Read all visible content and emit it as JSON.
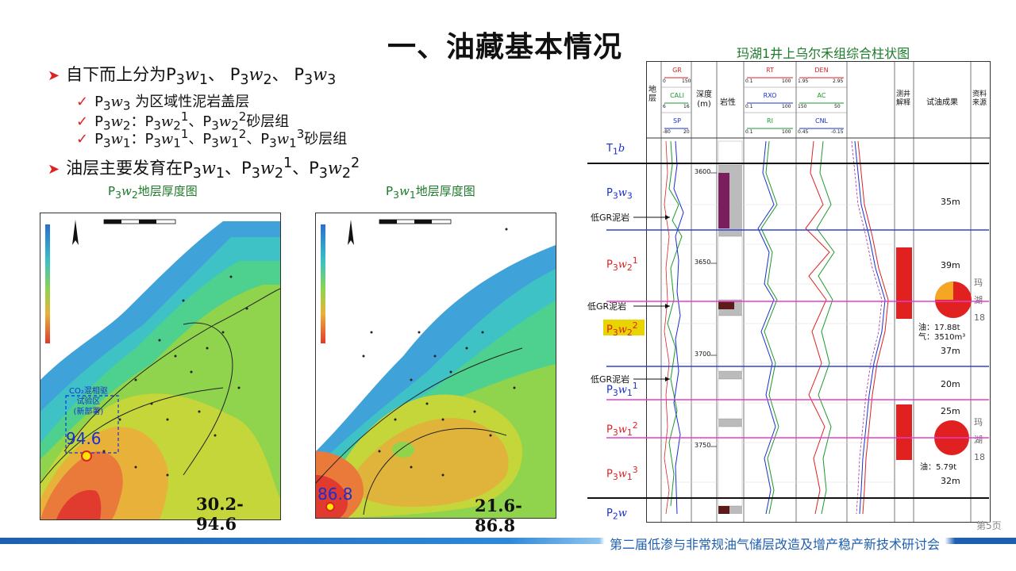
{
  "slide": {
    "title": "一、油藏基本情况",
    "page_number": "第5页",
    "footer": "第二届低渗与非常规油气储层改造及增产稳产新技术研讨会"
  },
  "bullets": {
    "b1": {
      "pre": "自下而上分为P",
      "s1": "3",
      "w1": "w",
      "n1": "1",
      "mid1": "、 P",
      "s2": "3",
      "w2": "w",
      "n2": "2",
      "mid2": "、 P",
      "s3": "3",
      "w3": "w",
      "n3": "3"
    },
    "sub1": "为区域性泥岩盖层",
    "sub2": "：",
    "sub2_tail": "砂层组",
    "sub3": "：",
    "sub3_tail": "砂层组",
    "b2_pre": "油层主要发育在"
  },
  "maps": {
    "left": {
      "label_pre": "P",
      "label_mid": "地层厚度图",
      "range": "30.2-94.6",
      "max_value": "94.6",
      "annotation": [
        "CO₂混相驱",
        "试验区",
        "(新部署)"
      ]
    },
    "right": {
      "label_pre": "P",
      "label_mid": "地层厚度图",
      "range": "21.6-86.8",
      "max_value": "86.8"
    }
  },
  "log_chart": {
    "title": "玛湖1井上乌尔禾组综合柱状图",
    "headers": {
      "strata": "地层",
      "depth": "深度(m)",
      "lith": "岩性",
      "interp": "测井解释",
      "test": "试油成果",
      "source": "资料来源"
    },
    "curves": {
      "gr": {
        "name": "GR",
        "min": "0",
        "max": "150"
      },
      "cali": {
        "name": "CALI",
        "min": "6",
        "max": "16"
      },
      "sp": {
        "name": "SP",
        "min": "-80",
        "max": "20"
      },
      "rt": {
        "name": "RT",
        "min": "0.1",
        "max": "100"
      },
      "rxo": {
        "name": "RXO",
        "min": "0.1",
        "max": "100"
      },
      "ri": {
        "name": "RI",
        "min": "0.1",
        "max": "100"
      },
      "den": {
        "name": "DEN",
        "min": "1.95",
        "max": "2.95"
      },
      "ac": {
        "name": "AC",
        "min": "150",
        "max": "50"
      },
      "cnl": {
        "name": "CNL",
        "min": "0.45",
        "max": "-0.15"
      }
    },
    "depth_ticks": [
      "3600",
      "3650",
      "3700",
      "3750"
    ],
    "zones": [
      {
        "name_main": "T",
        "name_sub": "1",
        "name_tail": "b",
        "thickness": ""
      },
      {
        "name_main": "P",
        "name_sub": "3",
        "name_tail": "w",
        "name_n": "3",
        "thickness": "35m"
      },
      {
        "name_main": "P",
        "name_sub": "3",
        "name_tail": "w",
        "name_n": "2",
        "name_sup": "1",
        "thickness": "39m"
      },
      {
        "name_main": "P",
        "name_sub": "3",
        "name_tail": "w",
        "name_n": "2",
        "name_sup": "2",
        "thickness": "37m"
      },
      {
        "name_main": "P",
        "name_sub": "3",
        "name_tail": "w",
        "name_n": "1",
        "name_sup": "1",
        "thickness": "20m"
      },
      {
        "name_main": "P",
        "name_sub": "3",
        "name_tail": "w",
        "name_n": "1",
        "name_sup": "2",
        "thickness": "25m"
      },
      {
        "name_main": "P",
        "name_sub": "3",
        "name_tail": "w",
        "name_n": "1",
        "name_sup": "3",
        "thickness": "32m"
      },
      {
        "name_main": "P",
        "name_sub": "2",
        "name_tail": "w",
        "thickness": ""
      }
    ],
    "low_gr_label": "低GR泥岩",
    "test_result_1": {
      "oil": "油：17.88t",
      "gas": "气：3510m³"
    },
    "test_result_2": {
      "oil": "油：5.79t"
    },
    "source_1": [
      "玛",
      "湖",
      "18"
    ],
    "source_2": [
      "玛",
      "湖",
      "18"
    ]
  },
  "colors": {
    "accent_red": "#dd2222",
    "title_green": "#1d7a2a",
    "footer_blue": "#1f5fb0",
    "zone_line_blue": "#3344cc",
    "zone_line_magenta": "#e040c8",
    "highlight_yellow": "#e8d400"
  }
}
